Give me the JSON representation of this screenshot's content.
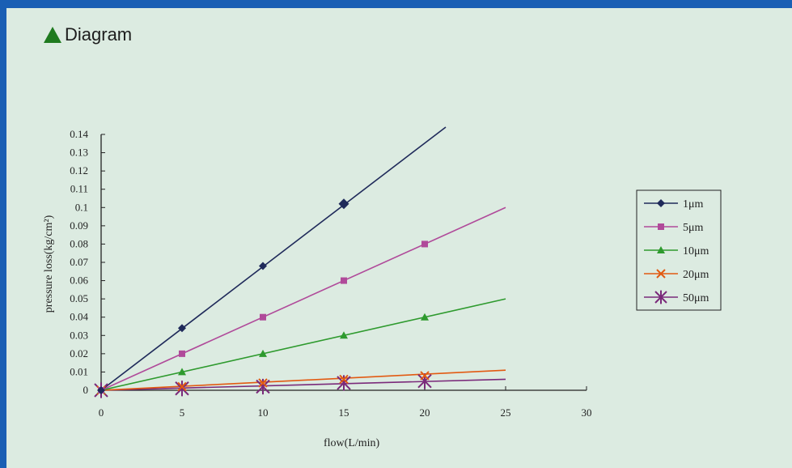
{
  "header": {
    "title": "Diagram",
    "icon": "triangle-icon"
  },
  "colors": {
    "frame_border": "#1a5fb4",
    "background": "#dcebe1",
    "icon": "#1f7a1f"
  },
  "chart_data": {
    "type": "line",
    "title": "",
    "xlabel": "flow(L/min)",
    "ylabel": "pressure loss(kg/cm²)",
    "xlim": [
      0,
      30
    ],
    "ylim": [
      0,
      0.14
    ],
    "x_ticks": [
      "0",
      "5",
      "10",
      "15",
      "20",
      "25",
      "30"
    ],
    "y_ticks": [
      "0",
      "0.01",
      "0.02",
      "0.03",
      "0.04",
      "0.05",
      "0.06",
      "0.07",
      "0.08",
      "0.09",
      "0.1",
      "0.11",
      "0.12",
      "0.13",
      "0.14"
    ],
    "grid": false,
    "legend_position": "right",
    "series": [
      {
        "name": "1μm",
        "color": "#1f2a5a",
        "marker": "diamond",
        "x": [
          0,
          5,
          10,
          15
        ],
        "y": [
          0,
          0.034,
          0.068,
          0.102
        ],
        "line_end": [
          21.3,
          0.144
        ]
      },
      {
        "name": "5μm",
        "color": "#b04a9a",
        "marker": "square",
        "x": [
          0,
          5,
          10,
          15,
          20
        ],
        "y": [
          0,
          0.02,
          0.04,
          0.06,
          0.08
        ],
        "line_end": [
          25,
          0.1
        ]
      },
      {
        "name": "10μm",
        "color": "#2e9a2e",
        "marker": "triangle",
        "x": [
          0,
          5,
          10,
          15,
          20
        ],
        "y": [
          0,
          0.01,
          0.02,
          0.03,
          0.04
        ],
        "line_end": [
          25,
          0.05
        ]
      },
      {
        "name": "20μm",
        "color": "#e25a12",
        "marker": "x",
        "x": [
          0,
          5,
          10,
          15,
          20
        ],
        "y": [
          0,
          0.002,
          0.004,
          0.006,
          0.008
        ],
        "line_end": [
          25,
          0.011
        ]
      },
      {
        "name": "50μm",
        "color": "#7a2a7a",
        "marker": "star",
        "x": [
          0,
          5,
          10,
          15,
          20
        ],
        "y": [
          0,
          0.001,
          0.002,
          0.004,
          0.005
        ],
        "line_end": [
          25,
          0.006
        ]
      }
    ]
  }
}
